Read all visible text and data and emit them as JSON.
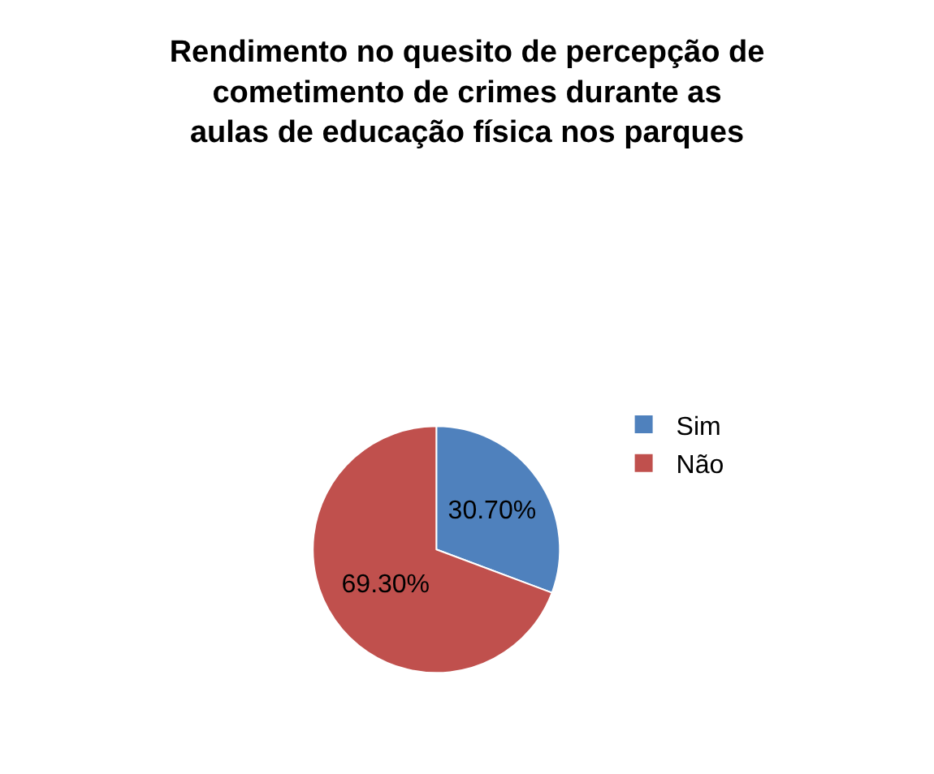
{
  "chart_data": {
    "type": "pie",
    "title": "Rendimento no quesito de percepção de\ncometimento de crimes durante as\naulas de educação física nos parques",
    "categories": [
      "Sim",
      "Não"
    ],
    "values": [
      30.7,
      69.3
    ],
    "colors": [
      "#4f81bd",
      "#c0504d"
    ],
    "value_labels": [
      "30.70%",
      "69.30%"
    ],
    "legend": "right"
  }
}
